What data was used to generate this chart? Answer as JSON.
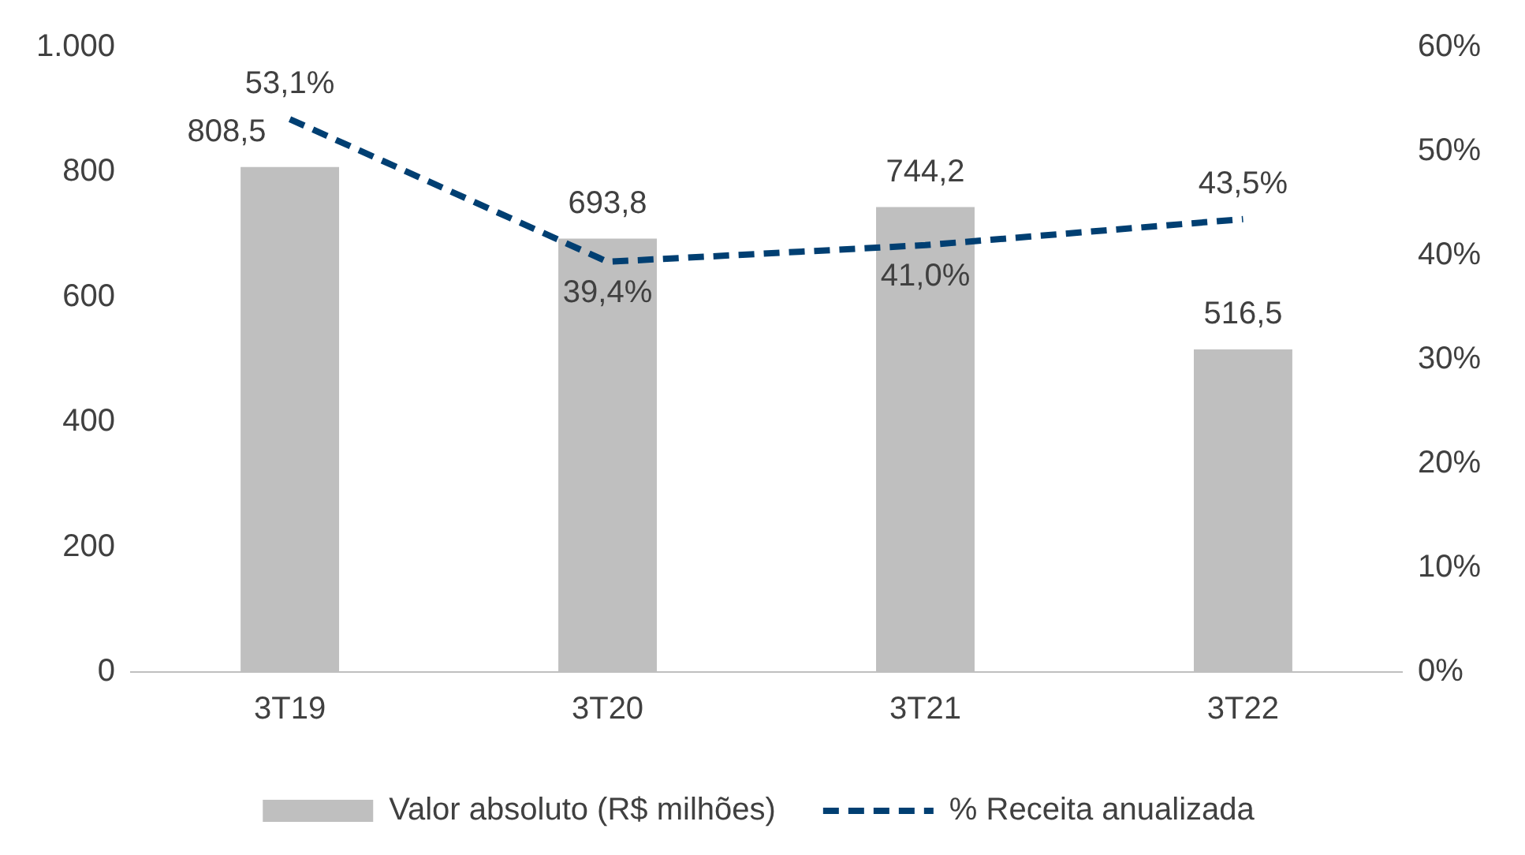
{
  "chart_data": {
    "type": "bar",
    "categories": [
      "3T19",
      "3T20",
      "3T21",
      "3T22"
    ],
    "series": [
      {
        "name": "Valor absoluto (R$ milhões)",
        "color": "#bfbfbf",
        "values": [
          808.5,
          693.8,
          744.2,
          516.5
        ],
        "value_labels": [
          "808,5",
          "693,8",
          "744,2",
          "516,5"
        ]
      },
      {
        "name": "% Receita anualizada",
        "type": "line",
        "axis": "y2",
        "color": "#003f72",
        "line_style": "dashed",
        "marker": "none",
        "values": [
          53.1,
          39.4,
          41.0,
          43.5
        ],
        "value_labels": [
          "53,1%",
          "39,4%",
          "41,0%",
          "43,5%"
        ]
      }
    ],
    "ylim": [
      0,
      1000
    ],
    "yticks": [
      0,
      200,
      400,
      600,
      800,
      {
        "value": 1000,
        "label": "1.000"
      }
    ],
    "y2lim": [
      0,
      60
    ],
    "y2ticks": [
      {
        "value": 0,
        "label": "0%"
      },
      {
        "value": 10,
        "label": "10%"
      },
      {
        "value": 20,
        "label": "20%"
      },
      {
        "value": 30,
        "label": "30%"
      },
      {
        "value": 40,
        "label": "40%"
      },
      {
        "value": 50,
        "label": "50%"
      },
      {
        "value": 60,
        "label": "60%"
      }
    ],
    "grid": false,
    "legend": "bottom"
  }
}
